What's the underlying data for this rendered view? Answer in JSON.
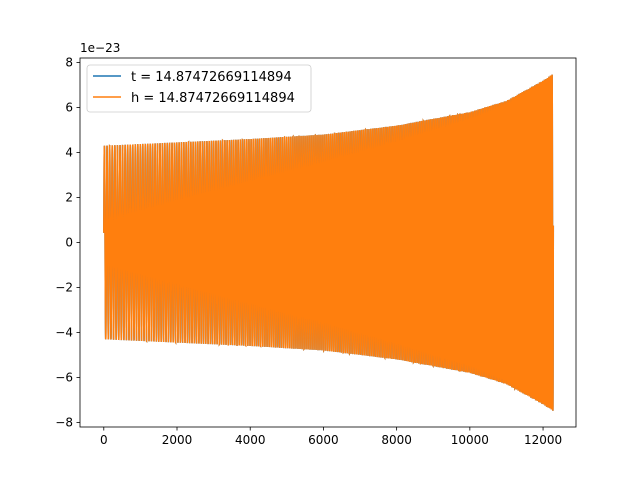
{
  "chart_data": {
    "type": "line",
    "title": "",
    "xlabel": "",
    "ylabel": "",
    "y_offset_label": "1e−23",
    "y_scale_exponent": -23,
    "xlim": [
      -650,
      12900
    ],
    "ylim": [
      -8.2,
      8.2
    ],
    "x_ticks": [
      0,
      2000,
      4000,
      6000,
      8000,
      10000,
      12000
    ],
    "x_tick_labels": [
      "0",
      "2000",
      "4000",
      "6000",
      "8000",
      "10000",
      "12000"
    ],
    "y_ticks": [
      -8,
      -6,
      -4,
      -2,
      0,
      2,
      4,
      6,
      8
    ],
    "y_tick_labels": [
      "−8",
      "−6",
      "−4",
      "−2",
      "0",
      "2",
      "4",
      "6",
      "8"
    ],
    "grid": false,
    "legend_placement": "top-left",
    "series": [
      {
        "name": "t = 14.87472669114894",
        "color": "#1f77b4",
        "kind": "chirp",
        "x_start": 0,
        "x_end": 12280,
        "envelope": [
          {
            "x": 0,
            "amp": 4.3
          },
          {
            "x": 4000,
            "amp": 4.6
          },
          {
            "x": 6000,
            "amp": 4.8
          },
          {
            "x": 8000,
            "amp": 5.2
          },
          {
            "x": 10000,
            "amp": 5.8
          },
          {
            "x": 11000,
            "amp": 6.3
          },
          {
            "x": 12000,
            "amp": 7.2
          },
          {
            "x": 12280,
            "amp": 7.5
          }
        ]
      },
      {
        "name": "h = 14.87472669114894",
        "color": "#ff7f0e",
        "kind": "chirp",
        "x_start": 0,
        "x_end": 12280,
        "envelope": [
          {
            "x": 0,
            "amp": 4.3
          },
          {
            "x": 4000,
            "amp": 4.6
          },
          {
            "x": 6000,
            "amp": 4.8
          },
          {
            "x": 8000,
            "amp": 5.2
          },
          {
            "x": 10000,
            "amp": 5.8
          },
          {
            "x": 11000,
            "amp": 6.3
          },
          {
            "x": 12000,
            "amp": 7.2
          },
          {
            "x": 12280,
            "amp": 7.5
          }
        ]
      }
    ]
  }
}
